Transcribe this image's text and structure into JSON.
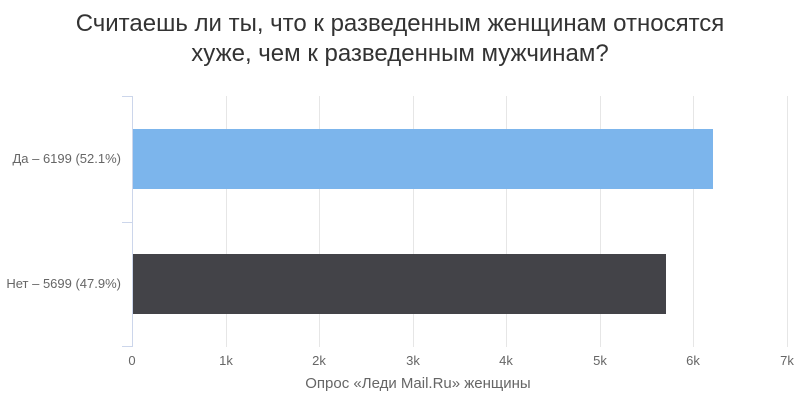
{
  "title": {
    "line1": "Считаешь ли ты, что к разведенным женщинам относятся",
    "line2": "хуже, чем к разведенным мужчинам?"
  },
  "caption": "Опрос «Леди Mail.Ru» женщины",
  "chart_data": {
    "type": "bar",
    "orientation": "horizontal",
    "title": "Считаешь ли ты, что к разведенным женщинам относятся хуже, чем к разведенным мужчинам?",
    "subtitle": "Опрос «Леди Mail.Ru» женщины",
    "categories": [
      "Да – 6199 (52.1%)",
      "Нет – 5699 (47.9%)"
    ],
    "values": [
      6199,
      5699
    ],
    "percents": [
      52.1,
      47.9
    ],
    "series_colors": [
      "#7cb5ec",
      "#434348"
    ],
    "value_axis": {
      "min": 0,
      "max": 7000,
      "tick_interval": 1000,
      "tick_labels": [
        "0",
        "1k",
        "2k",
        "3k",
        "4k",
        "5k",
        "6k",
        "7k"
      ]
    },
    "grid": true,
    "legend": false,
    "colors": {
      "background": "#ffffff",
      "grid_line": "#e6e6e6",
      "axis_line": "#ccd6eb",
      "title_text": "#333333",
      "label_text": "#666666"
    }
  }
}
